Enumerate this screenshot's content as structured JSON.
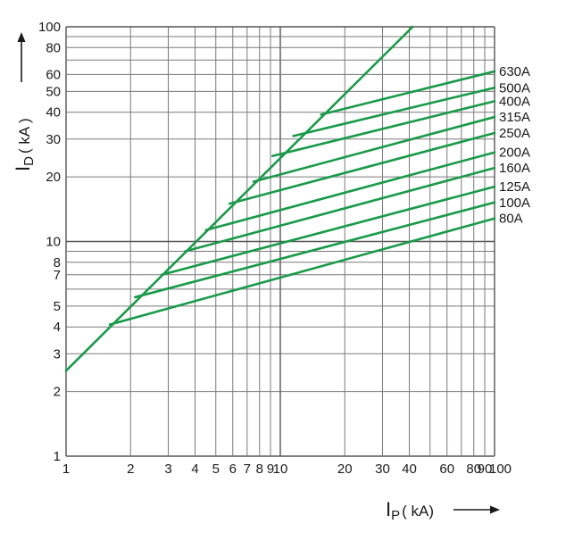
{
  "chart_data": {
    "type": "line",
    "scale": "log-log",
    "grid": true,
    "line_color": "#1a9a4a",
    "xlim": [
      1,
      100
    ],
    "ylim": [
      1,
      100
    ],
    "x_ticks": [
      {
        "v": 1,
        "label": "1"
      },
      {
        "v": 2,
        "label": "2"
      },
      {
        "v": 3,
        "label": "3"
      },
      {
        "v": 4,
        "label": "4"
      },
      {
        "v": 5,
        "label": "5"
      },
      {
        "v": 6,
        "label": "6"
      },
      {
        "v": 7,
        "label": "7"
      },
      {
        "v": 8,
        "label": "8"
      },
      {
        "v": 9,
        "label": "9"
      },
      {
        "v": 10,
        "label": "10"
      },
      {
        "v": 20,
        "label": "20"
      },
      {
        "v": 30,
        "label": "30"
      },
      {
        "v": 40,
        "label": "40"
      },
      {
        "v": 60,
        "label": "60"
      },
      {
        "v": 80,
        "label": "80"
      },
      {
        "v": 90,
        "label": "90"
      },
      {
        "v": 100,
        "label": "100"
      }
    ],
    "y_ticks": [
      {
        "v": 1,
        "label": "1"
      },
      {
        "v": 2,
        "label": "2"
      },
      {
        "v": 3,
        "label": "3"
      },
      {
        "v": 4,
        "label": "4"
      },
      {
        "v": 5,
        "label": "5"
      },
      {
        "v": 7,
        "label": "7"
      },
      {
        "v": 8,
        "label": "8"
      },
      {
        "v": 10,
        "label": "10"
      },
      {
        "v": 20,
        "label": "20"
      },
      {
        "v": 30,
        "label": "30"
      },
      {
        "v": 40,
        "label": "40"
      },
      {
        "v": 50,
        "label": "50"
      },
      {
        "v": 60,
        "label": "60"
      },
      {
        "v": 80,
        "label": "80"
      },
      {
        "v": 100,
        "label": "100"
      }
    ],
    "ylabel": {
      "main": "I",
      "sub": "D",
      "rest": "( kA )"
    },
    "xlabel": {
      "main": "I",
      "sub": "P",
      "rest": "( kA)"
    },
    "envelope": {
      "x": [
        1,
        41.5
      ],
      "y": [
        2.5,
        100
      ]
    },
    "series": [
      {
        "name": "630A",
        "x": [
          15.5,
          100
        ],
        "y": [
          39,
          62
        ]
      },
      {
        "name": "500A",
        "x": [
          11.5,
          100
        ],
        "y": [
          31,
          52
        ]
      },
      {
        "name": "400A",
        "x": [
          9.2,
          100
        ],
        "y": [
          25,
          45
        ]
      },
      {
        "name": "315A",
        "x": [
          7.5,
          100
        ],
        "y": [
          19,
          38
        ]
      },
      {
        "name": "250A",
        "x": [
          5.8,
          100
        ],
        "y": [
          15,
          32
        ]
      },
      {
        "name": "200A",
        "x": [
          4.5,
          100
        ],
        "y": [
          11.3,
          26
        ]
      },
      {
        "name": "160A",
        "x": [
          3.6,
          100
        ],
        "y": [
          9,
          22
        ]
      },
      {
        "name": "125A",
        "x": [
          2.8,
          100
        ],
        "y": [
          7,
          18
        ]
      },
      {
        "name": "100A",
        "x": [
          2.1,
          100
        ],
        "y": [
          5.5,
          15.2
        ]
      },
      {
        "name": "80A",
        "x": [
          1.6,
          100
        ],
        "y": [
          4.1,
          12.8
        ]
      }
    ]
  }
}
